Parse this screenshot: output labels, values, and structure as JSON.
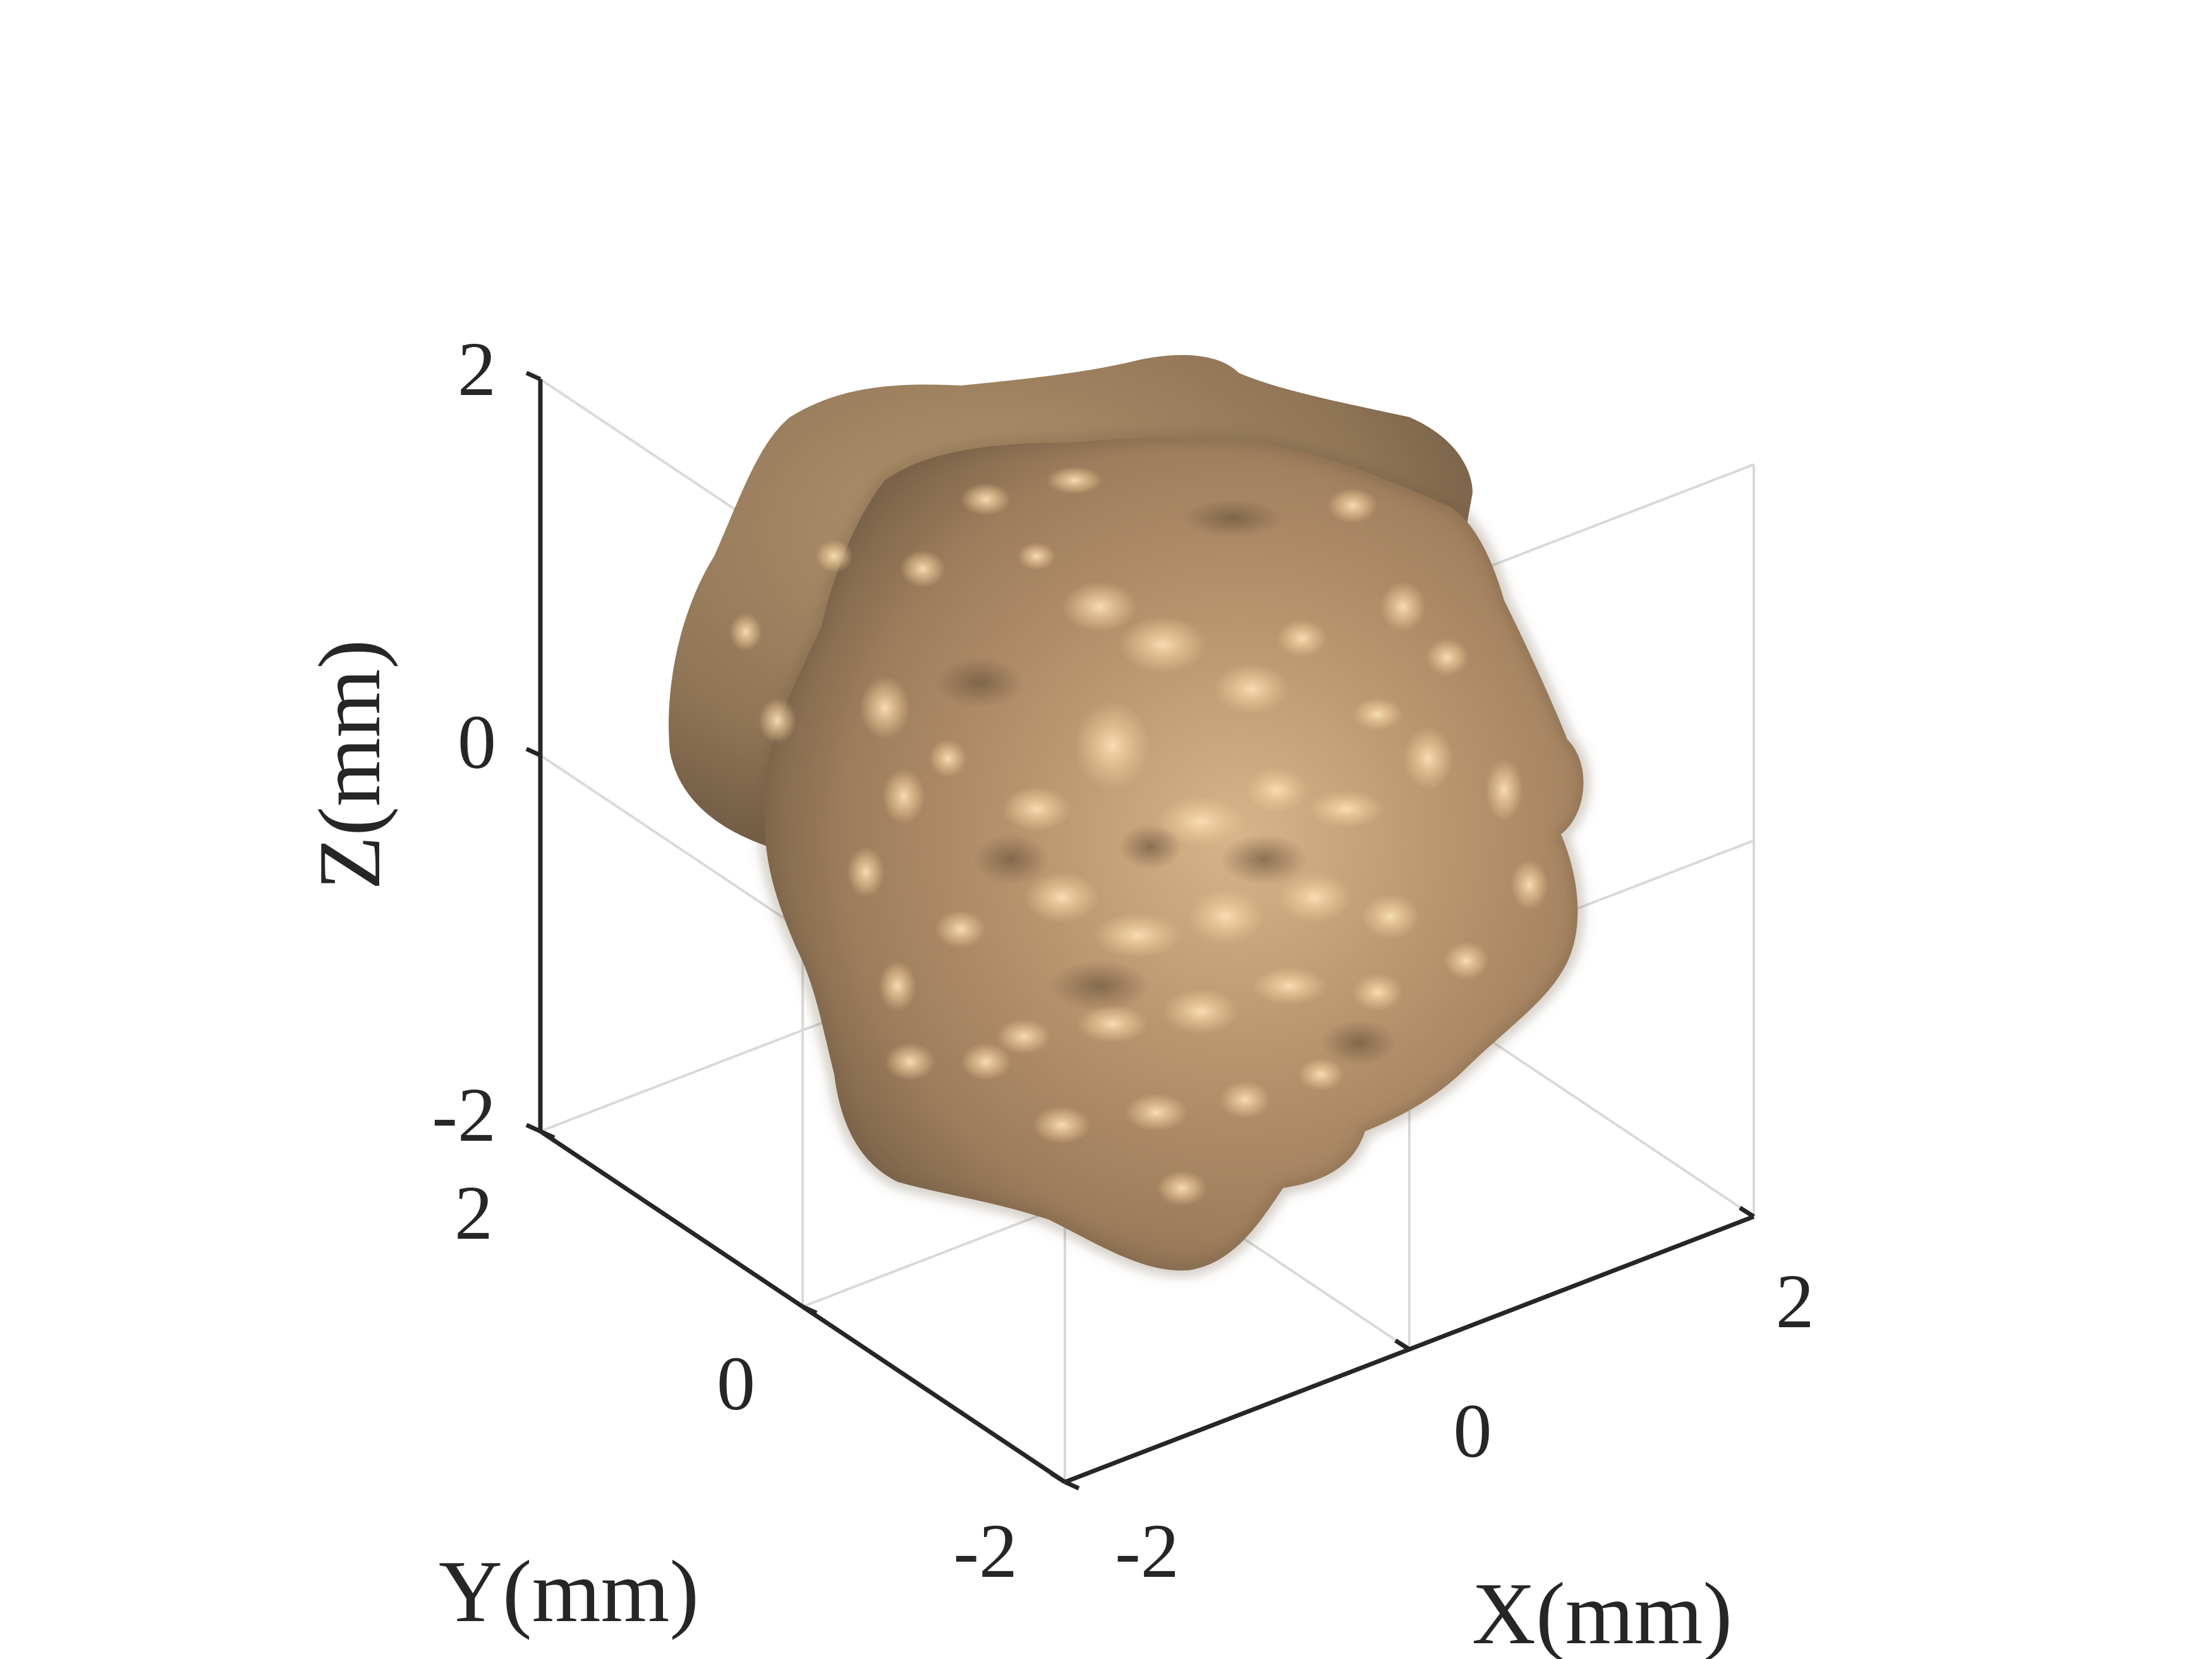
{
  "chart_data": {
    "type": "3d-surface",
    "title": "",
    "xlabel": "X(mm)",
    "ylabel": "Y(mm)",
    "zlabel": "Z(mm)",
    "xlim": [
      -2,
      2
    ],
    "ylim": [
      -2,
      2
    ],
    "zlim": [
      -2,
      2
    ],
    "xticks": [
      -2,
      0,
      2
    ],
    "yticks": [
      -2,
      0,
      2
    ],
    "zticks": [
      -2,
      0,
      2
    ],
    "xtick_labels": [
      "-2",
      "0",
      "2"
    ],
    "ytick_labels": [
      "-2",
      "0",
      "2"
    ],
    "ztick_labels": [
      "-2",
      "0",
      "2"
    ],
    "grid": true,
    "surface": {
      "description": "irregular rough particle surface",
      "center": [
        0,
        0,
        0
      ],
      "approx_extent": [
        -1.9,
        1.9
      ],
      "color": "#b89877",
      "highlight_color": "#f2d3a6",
      "shadow_color": "#7a644c"
    }
  }
}
